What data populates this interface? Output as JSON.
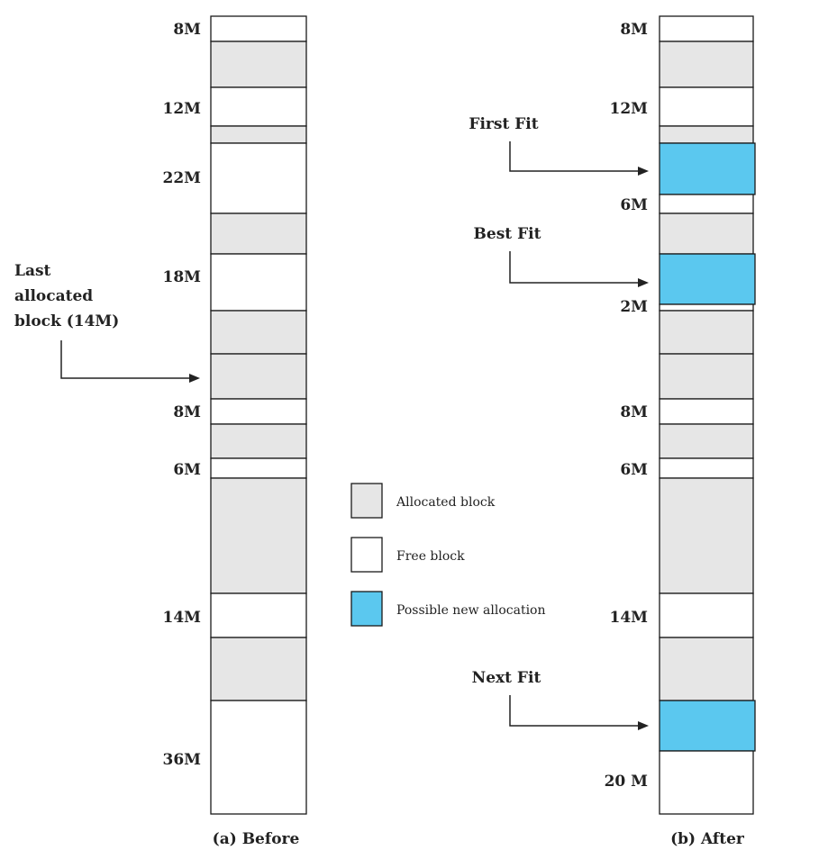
{
  "colors": {
    "allocated": "#e6e6e6",
    "free": "#ffffff",
    "new_allocation": "#5bc8ef",
    "outline": "#1a1a1a"
  },
  "before": {
    "caption": "(a) Before",
    "blocks": [
      {
        "kind": "free",
        "label": "8M"
      },
      {
        "kind": "allocated",
        "label": ""
      },
      {
        "kind": "free",
        "label": "12M"
      },
      {
        "kind": "allocated",
        "label": ""
      },
      {
        "kind": "free",
        "label": "22M"
      },
      {
        "kind": "allocated",
        "label": ""
      },
      {
        "kind": "free",
        "label": "18M"
      },
      {
        "kind": "allocated",
        "label": ""
      },
      {
        "kind": "allocated",
        "label": ""
      },
      {
        "kind": "free",
        "label": "8M"
      },
      {
        "kind": "allocated",
        "label": ""
      },
      {
        "kind": "free",
        "label": "6M"
      },
      {
        "kind": "allocated",
        "label": ""
      },
      {
        "kind": "free",
        "label": "14M"
      },
      {
        "kind": "allocated",
        "label": ""
      },
      {
        "kind": "free",
        "label": "36M"
      }
    ],
    "pointer": {
      "label_lines": [
        "Last",
        "allocated",
        "block (14M)"
      ]
    }
  },
  "after": {
    "caption": "(b) After",
    "blocks": [
      {
        "kind": "free",
        "label": "8M"
      },
      {
        "kind": "allocated",
        "label": ""
      },
      {
        "kind": "free",
        "label": "12M"
      },
      {
        "kind": "allocated",
        "label": ""
      },
      {
        "kind": "new",
        "label": ""
      },
      {
        "kind": "free",
        "label": "6M"
      },
      {
        "kind": "allocated",
        "label": ""
      },
      {
        "kind": "new",
        "label": ""
      },
      {
        "kind": "free",
        "label": "2M"
      },
      {
        "kind": "allocated",
        "label": ""
      },
      {
        "kind": "allocated",
        "label": ""
      },
      {
        "kind": "free",
        "label": "8M"
      },
      {
        "kind": "allocated",
        "label": ""
      },
      {
        "kind": "free",
        "label": "6M"
      },
      {
        "kind": "allocated",
        "label": ""
      },
      {
        "kind": "free",
        "label": "14M"
      },
      {
        "kind": "allocated",
        "label": ""
      },
      {
        "kind": "new",
        "label": ""
      },
      {
        "kind": "free",
        "label": "20 M"
      }
    ],
    "pointers": [
      {
        "id": "first-fit",
        "label": "First Fit"
      },
      {
        "id": "best-fit",
        "label": "Best Fit"
      },
      {
        "id": "next-fit",
        "label": "Next Fit"
      }
    ]
  },
  "legend": [
    {
      "kind": "allocated",
      "label": "Allocated block"
    },
    {
      "kind": "free",
      "label": "Free block"
    },
    {
      "kind": "new",
      "label": "Possible new allocation"
    }
  ]
}
